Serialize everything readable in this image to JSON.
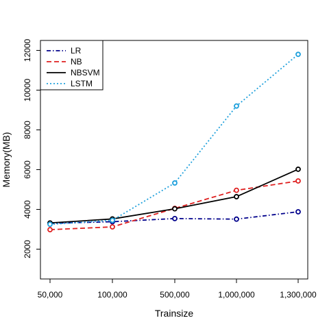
{
  "chart_data": {
    "type": "line",
    "title": "",
    "xlabel": "Trainsize",
    "ylabel": "Memory(MB)",
    "categories": [
      "50,000",
      "100,000",
      "500,000",
      "1,000,000",
      "1,300,000"
    ],
    "ylim": [
      500,
      12500
    ],
    "yticks": [
      2000,
      4000,
      6000,
      8000,
      10000,
      12000
    ],
    "grid": false,
    "legend_position": "top-left",
    "series": [
      {
        "name": "LR",
        "values": [
          3300,
          3380,
          3540,
          3510,
          3880
        ],
        "color": "#00008b",
        "dash": "dash-dot",
        "marker": "open-circle"
      },
      {
        "name": "NB",
        "values": [
          2980,
          3120,
          4050,
          4960,
          5430
        ],
        "color": "#df2020",
        "dash": "dashed",
        "marker": "open-circle"
      },
      {
        "name": "NBSVM",
        "values": [
          3320,
          3520,
          4030,
          4640,
          6020
        ],
        "color": "#000000",
        "dash": "solid",
        "marker": "open-circle"
      },
      {
        "name": "LSTM",
        "values": [
          3250,
          3450,
          5330,
          9200,
          11800
        ],
        "color": "#1ea0dc",
        "dash": "dotted",
        "marker": "open-circle"
      }
    ]
  }
}
